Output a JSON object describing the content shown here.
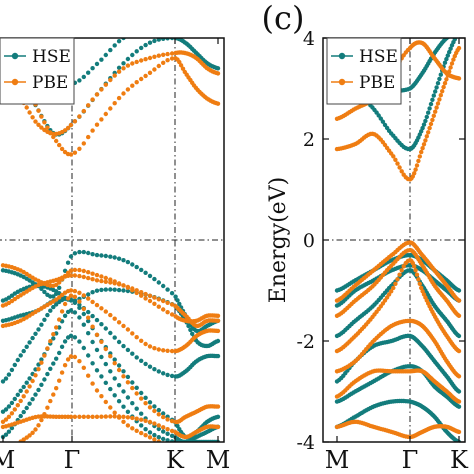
{
  "panel_label": "(c)",
  "colors": {
    "hse": "#137c7c",
    "pbe": "#ef7d12",
    "frame": "#111111"
  },
  "chart_data": [
    {
      "type": "line",
      "panel": "left",
      "title": "",
      "xlabel": "",
      "ylabel": "",
      "ylim": [
        -4,
        4
      ],
      "x_ticks": [
        "M",
        "Γ",
        "K",
        "M"
      ],
      "y_ticks": [],
      "grid": false,
      "fermi_level": 0,
      "legend": {
        "position": "top-left",
        "entries": [
          "HSE",
          "PBE"
        ]
      },
      "x": [
        0,
        0.25,
        0.5,
        0.75,
        1,
        1.25,
        1.5,
        1.75,
        2,
        2.25,
        2.5,
        2.75,
        3
      ],
      "series": [
        {
          "name": "HSE",
          "color": "#137c7c",
          "bands": [
            [
              3.9,
              3.3,
              2.6,
              2.1,
              2.3,
              2.9,
              3.5,
              3.9,
              4.0,
              3.9,
              3.7,
              3.5,
              3.4
            ],
            [
              4.1,
              4.1,
              3.9,
              3.4,
              3.1,
              3.5,
              4.0,
              4.1,
              4.1,
              4.1,
              4.1,
              4.1,
              4.1
            ],
            [
              -0.6,
              -0.7,
              -0.9,
              -1.1,
              -0.3,
              -0.3,
              -0.4,
              -0.7,
              -1.1,
              -1.5,
              -1.8,
              -1.7,
              -1.6
            ],
            [
              -1.2,
              -1.0,
              -0.9,
              -1.0,
              -1.2,
              -1.0,
              -1.0,
              -1.1,
              -1.3,
              -1.6,
              -2.0,
              -2.1,
              -2.0
            ],
            [
              -1.6,
              -1.5,
              -1.4,
              -1.2,
              -1.2,
              -1.6,
              -2.1,
              -2.5,
              -2.7,
              -2.6,
              -2.4,
              -2.3,
              -2.3
            ],
            [
              -2.8,
              -2.3,
              -1.8,
              -1.3,
              -1.2,
              -1.9,
              -2.6,
              -3.2,
              -3.6,
              -3.9,
              -3.8,
              -3.6,
              -3.5
            ],
            [
              -3.4,
              -3.0,
              -2.5,
              -1.9,
              -1.4,
              -2.2,
              -3.0,
              -3.6,
              -3.9,
              -4.0,
              -3.9,
              -3.8,
              -3.7
            ],
            [
              -3.9,
              -3.5,
              -3.0,
              -2.4,
              -1.9,
              -2.6,
              -3.3,
              -3.8,
              -4.0,
              -4.0,
              -4.0,
              -4.0,
              -4.0
            ]
          ]
        },
        {
          "name": "PBE",
          "color": "#ef7d12",
          "bands": [
            [
              4.2,
              3.4,
              2.6,
              2.0,
              1.7,
              2.3,
              2.9,
              3.3,
              3.6,
              3.3,
              3.0,
              2.8,
              2.7
            ],
            [
              3.0,
              2.8,
              2.3,
              2.1,
              2.3,
              2.9,
              3.4,
              3.6,
              3.7,
              3.7,
              3.6,
              3.4,
              3.3
            ],
            [
              -0.5,
              -0.6,
              -0.8,
              -0.9,
              -0.6,
              -0.7,
              -0.9,
              -1.2,
              -1.5,
              -1.6,
              -1.6,
              -1.5,
              -1.5
            ],
            [
              -1.3,
              -1.1,
              -0.9,
              -0.8,
              -0.7,
              -0.8,
              -0.9,
              -1.1,
              -1.3,
              -1.5,
              -1.7,
              -1.6,
              -1.6
            ],
            [
              -1.7,
              -1.6,
              -1.4,
              -1.2,
              -1.0,
              -1.3,
              -1.7,
              -2.1,
              -2.2,
              -2.1,
              -1.9,
              -1.8,
              -1.8
            ],
            [
              -3.6,
              -3.2,
              -2.6,
              -1.8,
              -1.1,
              -1.9,
              -2.7,
              -3.3,
              -3.6,
              -3.5,
              -3.4,
              -3.3,
              -3.3
            ],
            [
              -3.7,
              -3.6,
              -3.5,
              -3.5,
              -3.5,
              -3.5,
              -3.5,
              -3.6,
              -3.8,
              -3.9,
              -3.8,
              -3.7,
              -3.7
            ],
            [
              -4.2,
              -4.0,
              -3.7,
              -3.0,
              -2.3,
              -3.0,
              -3.6,
              -3.9,
              -4.1,
              -4.1,
              -4.1,
              -4.1,
              -4.1
            ]
          ]
        }
      ]
    },
    {
      "type": "line",
      "panel": "right",
      "title": "",
      "xlabel": "",
      "ylabel": "Energy(eV)",
      "ylim": [
        -4,
        4
      ],
      "x_ticks": [
        "M",
        "Γ",
        "K"
      ],
      "y_ticks": [
        -4,
        -2,
        0,
        2,
        4
      ],
      "grid": false,
      "fermi_level": 0,
      "legend": {
        "position": "top-left",
        "entries": [
          "HSE",
          "PBE"
        ]
      },
      "x": [
        0,
        0.25,
        0.5,
        0.75,
        1,
        1.25,
        1.5,
        1.75,
        2
      ],
      "series": [
        {
          "name": "HSE",
          "color": "#137c7c",
          "bands": [
            [
              2.8,
              2.9,
              2.6,
              2.1,
              1.8,
              2.2,
              2.9,
              3.6,
              4.1
            ],
            [
              3.9,
              3.7,
              3.3,
              3.0,
              3.0,
              3.3,
              3.7,
              4.0,
              4.1
            ],
            [
              -1.0,
              -0.8,
              -0.6,
              -0.4,
              -0.3,
              -0.4,
              -0.6,
              -0.8,
              -1.0
            ],
            [
              -1.3,
              -1.0,
              -0.8,
              -0.6,
              -0.5,
              -0.6,
              -0.8,
              -1.0,
              -1.2
            ],
            [
              -1.9,
              -1.6,
              -1.3,
              -0.9,
              -0.6,
              -0.9,
              -1.3,
              -1.6,
              -1.9
            ],
            [
              -2.8,
              -2.4,
              -2.1,
              -2.0,
              -1.9,
              -2.1,
              -2.4,
              -2.7,
              -3.0
            ],
            [
              -3.2,
              -3.0,
              -2.8,
              -2.6,
              -2.5,
              -2.6,
              -2.9,
              -3.1,
              -3.3
            ],
            [
              -3.7,
              -3.5,
              -3.3,
              -3.2,
              -3.2,
              -3.3,
              -3.5,
              -3.8,
              -4.0
            ]
          ]
        },
        {
          "name": "PBE",
          "color": "#ef7d12",
          "bands": [
            [
              1.8,
              1.9,
              2.1,
              1.7,
              1.2,
              1.8,
              2.5,
              3.2,
              3.8
            ],
            [
              2.4,
              2.6,
              2.8,
              3.3,
              3.8,
              3.9,
              3.6,
              3.3,
              3.2
            ],
            [
              -1.2,
              -0.9,
              -0.6,
              -0.3,
              -0.05,
              -0.3,
              -0.6,
              -0.9,
              -1.2
            ],
            [
              -1.5,
              -1.2,
              -0.9,
              -0.5,
              -0.2,
              -0.5,
              -0.9,
              -1.2,
              -1.5
            ],
            [
              -2.2,
              -1.9,
              -1.5,
              -1.0,
              -0.4,
              -1.0,
              -1.5,
              -1.9,
              -2.2
            ],
            [
              -2.6,
              -2.4,
              -2.0,
              -1.7,
              -1.6,
              -1.7,
              -2.0,
              -2.4,
              -2.7
            ],
            [
              -3.1,
              -2.8,
              -2.6,
              -2.6,
              -2.6,
              -2.6,
              -2.8,
              -3.0,
              -3.2
            ],
            [
              -3.7,
              -3.6,
              -3.7,
              -3.8,
              -3.9,
              -3.8,
              -3.7,
              -3.7,
              -3.8
            ]
          ]
        }
      ]
    }
  ]
}
